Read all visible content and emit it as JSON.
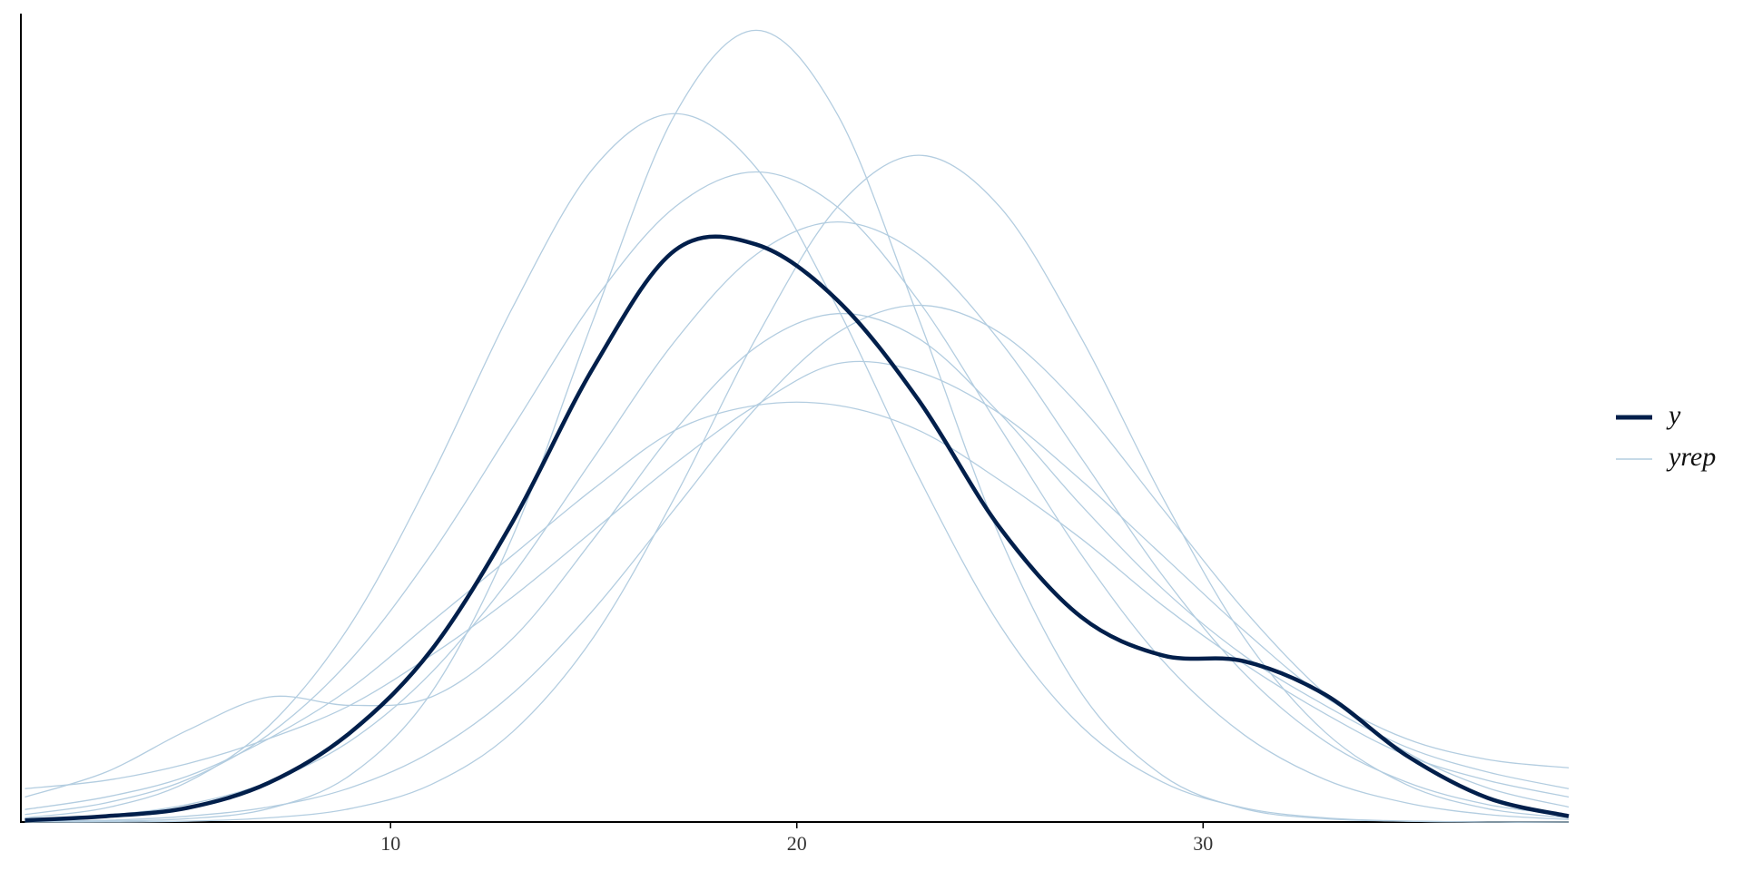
{
  "chart_data": {
    "type": "density",
    "x": [
      1,
      3,
      5,
      7,
      9,
      11,
      13,
      15,
      17,
      19,
      21,
      23,
      25,
      27,
      29,
      31,
      33,
      35,
      37,
      39
    ],
    "series": [
      {
        "name": "y",
        "color": "#011f4b",
        "values": [
          0.0002,
          0.0007,
          0.0017,
          0.0047,
          0.0107,
          0.0206,
          0.036,
          0.0546,
          0.0686,
          0.0693,
          0.0626,
          0.0506,
          0.0353,
          0.0246,
          0.02,
          0.0193,
          0.0153,
          0.008,
          0.0029,
          0.0007
        ]
      },
      {
        "name": "yrep",
        "color": "#b3cde0",
        "draws": [
          [
            0,
            0.0001,
            0.0004,
            0.0016,
            0.0056,
            0.0155,
            0.0342,
            0.0604,
            0.0849,
            0.095,
            0.0849,
            0.0604,
            0.0342,
            0.0155,
            0.0056,
            0.0016,
            0.0004,
            0.0001,
            0,
            0
          ],
          [
            0.0003,
            0.0008,
            0.0021,
            0.0048,
            0.0097,
            0.0179,
            0.0296,
            0.0437,
            0.0577,
            0.0681,
            0.072,
            0.0681,
            0.0577,
            0.0437,
            0.0296,
            0.0179,
            0.0097,
            0.0048,
            0.0021,
            0.0008
          ],
          [
            0.0001,
            0.0002,
            0.0007,
            0.0018,
            0.0041,
            0.0084,
            0.0154,
            0.0255,
            0.0376,
            0.0497,
            0.0587,
            0.062,
            0.0587,
            0.0497,
            0.0376,
            0.0255,
            0.0154,
            0.0084,
            0.0041,
            0.0018
          ],
          [
            0.0009,
            0.0023,
            0.0051,
            0.0105,
            0.0194,
            0.0321,
            0.0473,
            0.0625,
            0.0738,
            0.078,
            0.0738,
            0.0625,
            0.0473,
            0.0321,
            0.0194,
            0.0105,
            0.0051,
            0.0023,
            0.0009,
            0.0003
          ],
          [
            0.004,
            0.005,
            0.007,
            0.01,
            0.014,
            0.02,
            0.027,
            0.035,
            0.043,
            0.05,
            0.055,
            0.054,
            0.049,
            0.041,
            0.032,
            0.023,
            0.015,
            0.01,
            0.0075,
            0.0065
          ],
          [
            0.0005,
            0.0017,
            0.0048,
            0.0115,
            0.0236,
            0.0414,
            0.0617,
            0.0785,
            0.085,
            0.0785,
            0.0617,
            0.0414,
            0.0236,
            0.0115,
            0.0048,
            0.0017,
            0.0005,
            0.0001,
            0,
            0
          ],
          [
            0,
            0,
            0.0001,
            0.0005,
            0.0016,
            0.0045,
            0.0108,
            0.0222,
            0.039,
            0.0581,
            0.0738,
            0.08,
            0.0738,
            0.0581,
            0.039,
            0.0222,
            0.0108,
            0.0045,
            0.0016,
            0.0005
          ],
          [
            0.003,
            0.006,
            0.011,
            0.015,
            0.014,
            0.015,
            0.022,
            0.034,
            0.047,
            0.057,
            0.061,
            0.058,
            0.049,
            0.038,
            0.028,
            0.02,
            0.014,
            0.009,
            0.006,
            0.004
          ],
          [
            0.0015,
            0.003,
            0.0055,
            0.01,
            0.016,
            0.024,
            0.032,
            0.04,
            0.047,
            0.05,
            0.05,
            0.047,
            0.041,
            0.034,
            0.026,
            0.019,
            0.013,
            0.008,
            0.005,
            0.003
          ]
        ]
      }
    ],
    "xlim": [
      0.9,
      39.0
    ],
    "xticks": [
      10,
      20,
      30
    ],
    "ylim": [
      0,
      0.097
    ],
    "grid": false,
    "legend": "right"
  }
}
